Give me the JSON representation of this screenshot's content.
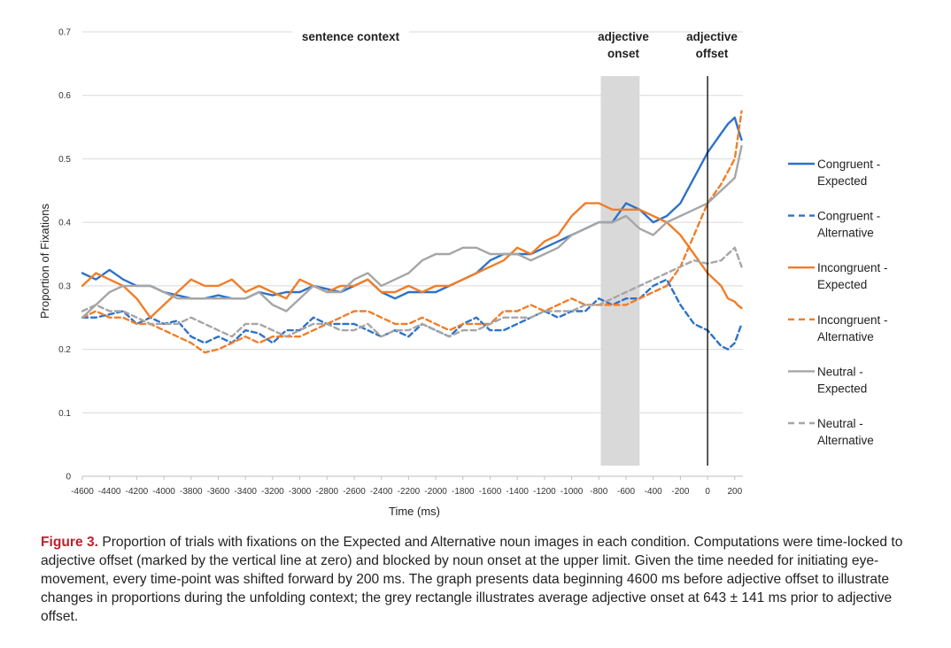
{
  "chart_data": {
    "type": "line",
    "xlabel": "Time (ms)",
    "ylabel": "Proportion of Fixations",
    "xlim": [
      -4600,
      250
    ],
    "ylim": [
      0,
      0.7
    ],
    "x_ticks": [
      -4600,
      -4400,
      -4200,
      -4000,
      -3800,
      -3600,
      -3400,
      -3200,
      -3000,
      -2800,
      -2600,
      -2400,
      -2200,
      -2000,
      -1800,
      -1600,
      -1400,
      -1200,
      -1000,
      -800,
      -600,
      -400,
      -200,
      0,
      200
    ],
    "y_ticks": [
      0,
      0.1,
      0.2,
      0.3,
      0.4,
      0.5,
      0.6,
      0.7
    ],
    "y_tick_labels": [
      "0",
      "0.1",
      "0.2",
      "0.3",
      "0.4",
      "0.5",
      "0.6",
      "0.7"
    ],
    "grid": "horizontal",
    "legend_position": "right",
    "annotations": {
      "sentence_context": "sentence context",
      "adjective_onset": [
        "adjective",
        "onset"
      ],
      "adjective_offset": [
        "adjective",
        "offset"
      ]
    },
    "onset_band": [
      -786,
      -500
    ],
    "offset_line": 0,
    "series": [
      {
        "name": "Congruent - Expected",
        "legend": [
          "Congruent -",
          "Expected"
        ],
        "color": "#2e72c8",
        "dash": "solid",
        "x": [
          -4600,
          -4500,
          -4400,
          -4300,
          -4200,
          -4100,
          -4000,
          -3900,
          -3800,
          -3700,
          -3600,
          -3500,
          -3400,
          -3300,
          -3200,
          -3100,
          -3000,
          -2900,
          -2800,
          -2700,
          -2600,
          -2500,
          -2400,
          -2300,
          -2200,
          -2100,
          -2000,
          -1900,
          -1800,
          -1700,
          -1600,
          -1500,
          -1400,
          -1300,
          -1200,
          -1100,
          -1000,
          -900,
          -800,
          -700,
          -600,
          -500,
          -400,
          -300,
          -200,
          -100,
          0,
          100,
          150,
          200,
          220,
          250
        ],
        "y": [
          0.32,
          0.31,
          0.325,
          0.31,
          0.3,
          0.3,
          0.29,
          0.285,
          0.28,
          0.28,
          0.285,
          0.28,
          0.28,
          0.29,
          0.285,
          0.29,
          0.29,
          0.3,
          0.295,
          0.29,
          0.3,
          0.31,
          0.29,
          0.28,
          0.29,
          0.29,
          0.29,
          0.3,
          0.31,
          0.32,
          0.34,
          0.35,
          0.35,
          0.35,
          0.36,
          0.37,
          0.38,
          0.39,
          0.4,
          0.4,
          0.43,
          0.42,
          0.4,
          0.41,
          0.43,
          0.47,
          0.51,
          0.54,
          0.555,
          0.565,
          0.55,
          0.53
        ]
      },
      {
        "name": "Congruent - Alternative",
        "legend": [
          "Congruent -",
          "Alternative"
        ],
        "color": "#2e72c8",
        "dash": "dashed",
        "x": [
          -4600,
          -4500,
          -4400,
          -4300,
          -4200,
          -4100,
          -4000,
          -3900,
          -3800,
          -3700,
          -3600,
          -3500,
          -3400,
          -3300,
          -3200,
          -3100,
          -3000,
          -2900,
          -2800,
          -2700,
          -2600,
          -2500,
          -2400,
          -2300,
          -2200,
          -2100,
          -2000,
          -1900,
          -1800,
          -1700,
          -1600,
          -1500,
          -1400,
          -1300,
          -1200,
          -1100,
          -1000,
          -900,
          -800,
          -700,
          -600,
          -500,
          -400,
          -300,
          -200,
          -100,
          0,
          100,
          150,
          200,
          250
        ],
        "y": [
          0.25,
          0.25,
          0.255,
          0.26,
          0.24,
          0.25,
          0.24,
          0.245,
          0.22,
          0.21,
          0.22,
          0.21,
          0.23,
          0.225,
          0.21,
          0.23,
          0.23,
          0.25,
          0.24,
          0.24,
          0.24,
          0.23,
          0.22,
          0.23,
          0.22,
          0.24,
          0.23,
          0.22,
          0.24,
          0.25,
          0.23,
          0.23,
          0.24,
          0.25,
          0.26,
          0.25,
          0.26,
          0.26,
          0.28,
          0.27,
          0.28,
          0.28,
          0.3,
          0.31,
          0.27,
          0.24,
          0.23,
          0.205,
          0.2,
          0.21,
          0.24
        ]
      },
      {
        "name": "Incongruent - Expected",
        "legend": [
          "Incongruent -",
          "Expected"
        ],
        "color": "#f07e2a",
        "dash": "solid",
        "x": [
          -4600,
          -4500,
          -4400,
          -4300,
          -4200,
          -4100,
          -4000,
          -3900,
          -3800,
          -3700,
          -3600,
          -3500,
          -3400,
          -3300,
          -3200,
          -3100,
          -3000,
          -2900,
          -2800,
          -2700,
          -2600,
          -2500,
          -2400,
          -2300,
          -2200,
          -2100,
          -2000,
          -1900,
          -1800,
          -1700,
          -1600,
          -1500,
          -1400,
          -1300,
          -1200,
          -1100,
          -1000,
          -900,
          -800,
          -700,
          -600,
          -500,
          -400,
          -300,
          -200,
          -100,
          0,
          100,
          150,
          200,
          220,
          250
        ],
        "y": [
          0.3,
          0.32,
          0.31,
          0.3,
          0.28,
          0.25,
          0.27,
          0.29,
          0.31,
          0.3,
          0.3,
          0.31,
          0.29,
          0.3,
          0.29,
          0.28,
          0.31,
          0.3,
          0.29,
          0.3,
          0.3,
          0.31,
          0.29,
          0.29,
          0.3,
          0.29,
          0.3,
          0.3,
          0.31,
          0.32,
          0.33,
          0.34,
          0.36,
          0.35,
          0.37,
          0.38,
          0.41,
          0.43,
          0.43,
          0.42,
          0.42,
          0.42,
          0.41,
          0.4,
          0.38,
          0.35,
          0.32,
          0.3,
          0.28,
          0.275,
          0.27,
          0.265
        ]
      },
      {
        "name": "Incongruent - Alternative",
        "legend": [
          "Incongruent -",
          "Alternative"
        ],
        "color": "#f07e2a",
        "dash": "dashed",
        "x": [
          -4600,
          -4500,
          -4400,
          -4300,
          -4200,
          -4100,
          -4000,
          -3900,
          -3800,
          -3700,
          -3600,
          -3500,
          -3400,
          -3300,
          -3200,
          -3100,
          -3000,
          -2900,
          -2800,
          -2700,
          -2600,
          -2500,
          -2400,
          -2300,
          -2200,
          -2100,
          -2000,
          -1900,
          -1800,
          -1700,
          -1600,
          -1500,
          -1400,
          -1300,
          -1200,
          -1100,
          -1000,
          -900,
          -800,
          -700,
          -600,
          -500,
          -400,
          -300,
          -200,
          -100,
          0,
          100,
          150,
          200,
          250
        ],
        "y": [
          0.25,
          0.26,
          0.25,
          0.25,
          0.24,
          0.24,
          0.23,
          0.22,
          0.21,
          0.195,
          0.2,
          0.21,
          0.22,
          0.21,
          0.22,
          0.22,
          0.22,
          0.23,
          0.24,
          0.25,
          0.26,
          0.26,
          0.25,
          0.24,
          0.24,
          0.25,
          0.24,
          0.23,
          0.24,
          0.24,
          0.24,
          0.26,
          0.26,
          0.27,
          0.26,
          0.27,
          0.28,
          0.27,
          0.27,
          0.27,
          0.27,
          0.28,
          0.29,
          0.3,
          0.33,
          0.38,
          0.43,
          0.46,
          0.48,
          0.5,
          0.575
        ]
      },
      {
        "name": "Neutral - Expected",
        "legend": [
          "Neutral -",
          "Expected"
        ],
        "color": "#a6a6a6",
        "dash": "solid",
        "x": [
          -4600,
          -4500,
          -4400,
          -4300,
          -4200,
          -4100,
          -4000,
          -3900,
          -3800,
          -3700,
          -3600,
          -3500,
          -3400,
          -3300,
          -3200,
          -3100,
          -3000,
          -2900,
          -2800,
          -2700,
          -2600,
          -2500,
          -2400,
          -2300,
          -2200,
          -2100,
          -2000,
          -1900,
          -1800,
          -1700,
          -1600,
          -1500,
          -1400,
          -1300,
          -1200,
          -1100,
          -1000,
          -900,
          -800,
          -700,
          -600,
          -500,
          -400,
          -300,
          -200,
          -100,
          0,
          100,
          150,
          200,
          220,
          250
        ],
        "y": [
          0.25,
          0.27,
          0.29,
          0.3,
          0.3,
          0.3,
          0.29,
          0.28,
          0.28,
          0.28,
          0.28,
          0.28,
          0.28,
          0.29,
          0.27,
          0.26,
          0.28,
          0.3,
          0.29,
          0.29,
          0.31,
          0.32,
          0.3,
          0.31,
          0.32,
          0.34,
          0.35,
          0.35,
          0.36,
          0.36,
          0.35,
          0.35,
          0.35,
          0.34,
          0.35,
          0.36,
          0.38,
          0.39,
          0.4,
          0.4,
          0.41,
          0.39,
          0.38,
          0.4,
          0.41,
          0.42,
          0.43,
          0.45,
          0.46,
          0.47,
          0.49,
          0.52
        ]
      },
      {
        "name": "Neutral - Alternative",
        "legend": [
          "Neutral -",
          "Alternative"
        ],
        "color": "#a6a6a6",
        "dash": "dashed",
        "x": [
          -4600,
          -4500,
          -4400,
          -4300,
          -4200,
          -4100,
          -4000,
          -3900,
          -3800,
          -3700,
          -3600,
          -3500,
          -3400,
          -3300,
          -3200,
          -3100,
          -3000,
          -2900,
          -2800,
          -2700,
          -2600,
          -2500,
          -2400,
          -2300,
          -2200,
          -2100,
          -2000,
          -1900,
          -1800,
          -1700,
          -1600,
          -1500,
          -1400,
          -1300,
          -1200,
          -1100,
          -1000,
          -900,
          -800,
          -700,
          -600,
          -500,
          -400,
          -300,
          -200,
          -100,
          0,
          100,
          150,
          200,
          250
        ],
        "y": [
          0.26,
          0.27,
          0.26,
          0.26,
          0.25,
          0.24,
          0.24,
          0.24,
          0.25,
          0.24,
          0.23,
          0.22,
          0.24,
          0.24,
          0.23,
          0.22,
          0.23,
          0.24,
          0.24,
          0.23,
          0.23,
          0.24,
          0.22,
          0.23,
          0.23,
          0.24,
          0.23,
          0.22,
          0.23,
          0.23,
          0.24,
          0.25,
          0.25,
          0.25,
          0.26,
          0.26,
          0.26,
          0.27,
          0.27,
          0.28,
          0.29,
          0.3,
          0.31,
          0.32,
          0.33,
          0.34,
          0.335,
          0.34,
          0.35,
          0.36,
          0.33
        ]
      }
    ]
  },
  "caption": {
    "label": "Figure 3.",
    "text": " Proportion of trials with fixations on the Expected and Alternative noun images in each condition. Computations were time-locked to adjective offset (marked by the vertical line at zero) and blocked by noun onset at the upper limit. Given the time needed for initiating eye-movement, every time-point was shifted forward by 200 ms. The graph presents data beginning 4600 ms before adjective offset to illustrate changes in proportions during the unfolding context; the grey rectangle illustrates average adjective onset at 643 ± 141 ms prior to adjective offset."
  }
}
